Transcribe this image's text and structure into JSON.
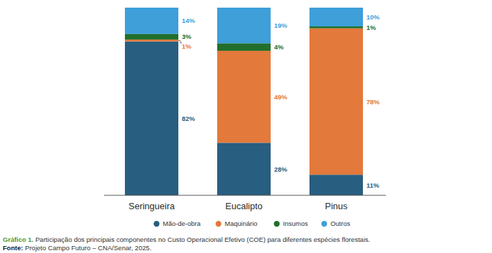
{
  "chart_data": {
    "type": "bar",
    "stacked": true,
    "data_labels": true,
    "tick_labels": "x",
    "grid": false,
    "legend": "bottom",
    "categories": [
      "Seringueira",
      "Eucalipto",
      "Pinus"
    ],
    "ylim": [
      0,
      100
    ],
    "series": [
      {
        "name": "Mão-de-obra",
        "color": "#285e7f",
        "values": [
          82,
          28,
          11
        ],
        "value_labels": [
          "82%",
          "28%",
          "11%"
        ]
      },
      {
        "name": "Maquinário",
        "color": "#e3793a",
        "values": [
          1,
          49,
          78
        ],
        "value_labels": [
          "1%",
          "49%",
          "78%"
        ]
      },
      {
        "name": "Insumos",
        "color": "#226f2c",
        "values": [
          3,
          4,
          1
        ],
        "value_labels": [
          "3%",
          "4%",
          "1%"
        ]
      },
      {
        "name": "Outros",
        "color": "#3e9fd9",
        "values": [
          14,
          19,
          10
        ],
        "value_labels": [
          "14%",
          "19%",
          "10%"
        ]
      }
    ],
    "caption": [
      "Gráfico 1.",
      " Participação dos principais componentes no Custo Operacional Efetivo (COE) para diferentes espécies florestais."
    ],
    "source": [
      "Fonte:",
      " Projeto Campo Futuro – CNA/Senar, 2025."
    ]
  }
}
